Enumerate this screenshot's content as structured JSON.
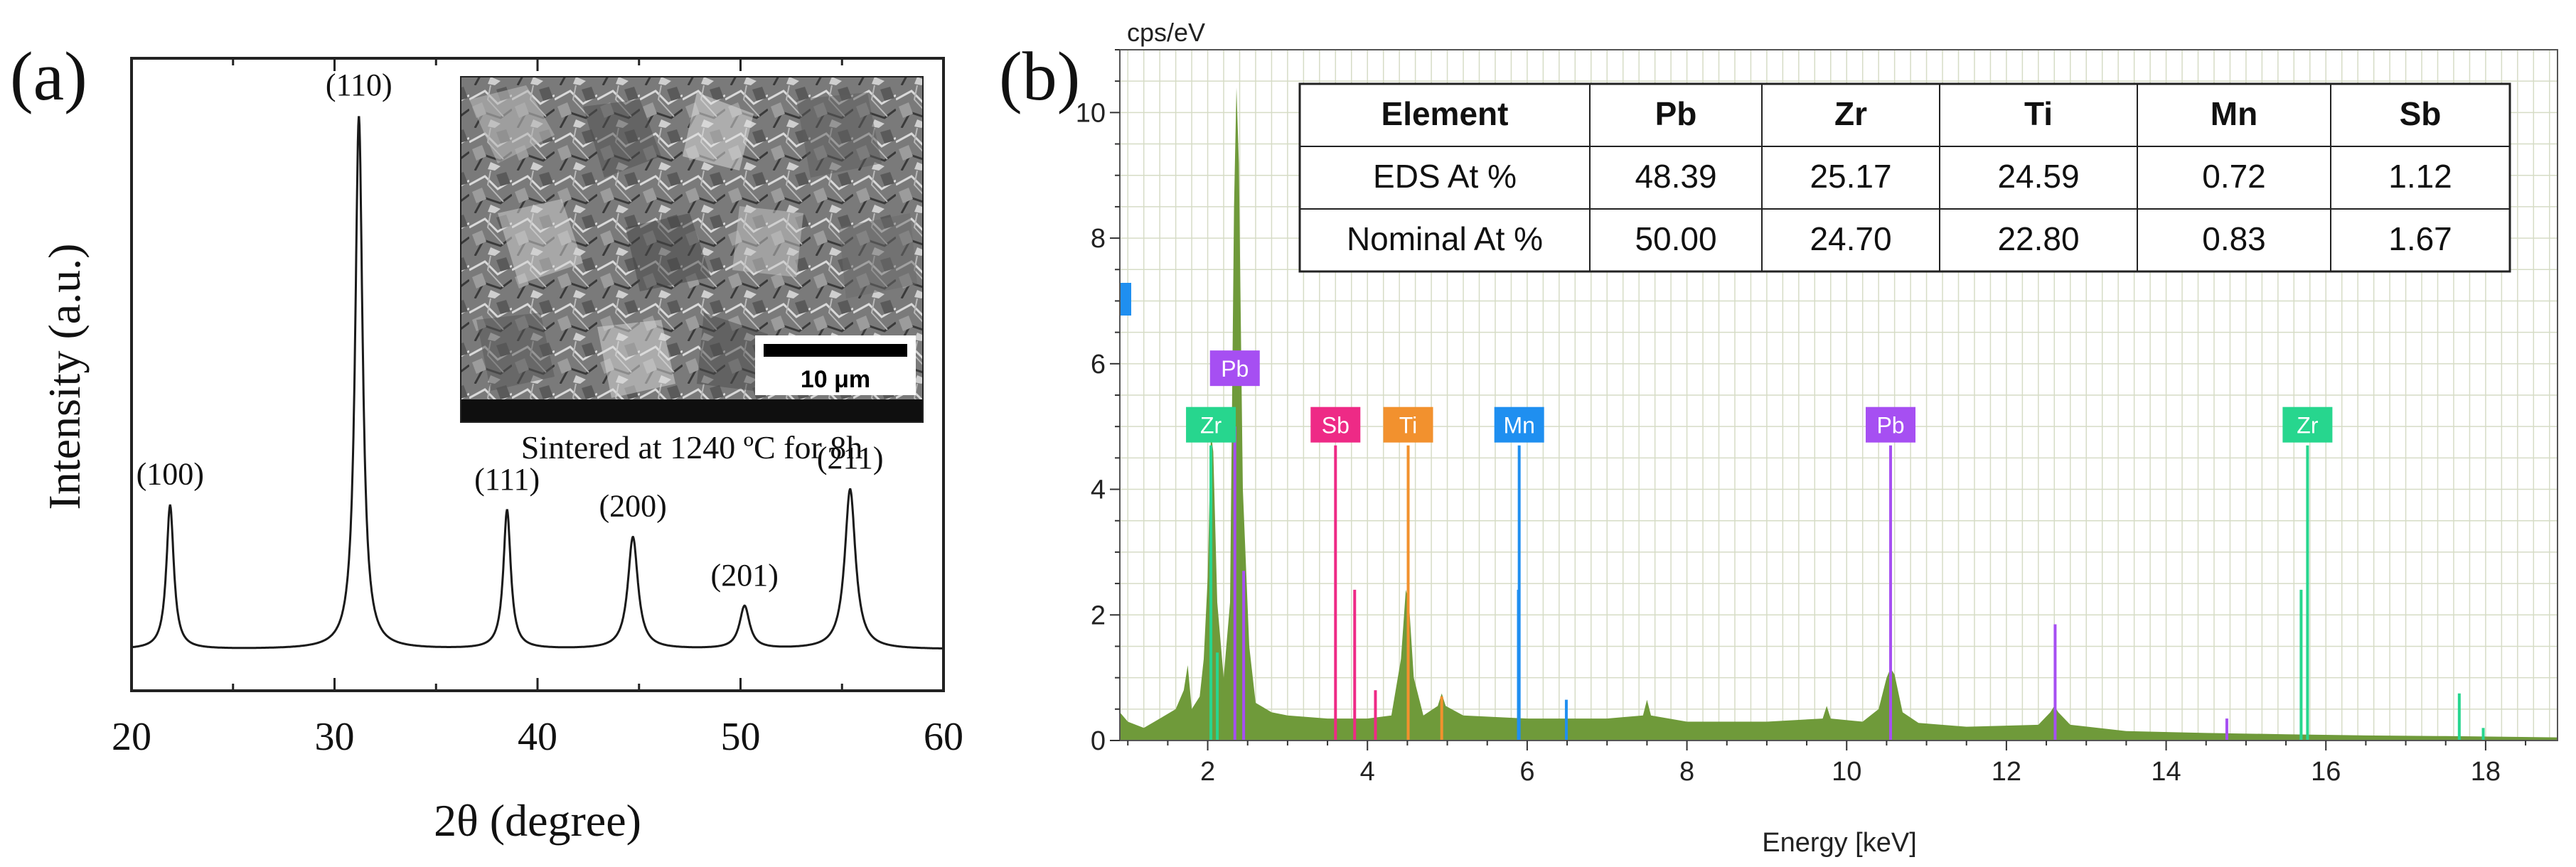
{
  "chart_data": [
    {
      "type": "line",
      "panel_label": "(a)",
      "xlabel": "2θ (degree)",
      "ylabel": "Intensity (a.u.)",
      "xlim": [
        20,
        60
      ],
      "xticks": [
        20,
        30,
        40,
        50,
        60
      ],
      "y_ticks_shown": false,
      "grid": false,
      "baseline": 0.035,
      "peaks": [
        {
          "label": "(100)",
          "x": 21.9,
          "height": 0.27,
          "width": 0.22
        },
        {
          "label": "(110)",
          "x": 31.2,
          "height": 1.0,
          "width": 0.22
        },
        {
          "label": "(111)",
          "x": 38.5,
          "height": 0.26,
          "width": 0.22
        },
        {
          "label": "(200)",
          "x": 44.7,
          "height": 0.21,
          "width": 0.3
        },
        {
          "label": "(201)",
          "x": 50.2,
          "height": 0.08,
          "width": 0.3
        },
        {
          "label": "(211)",
          "x": 55.4,
          "height": 0.3,
          "width": 0.32
        }
      ],
      "inset": {
        "caption": "Sintered at 1240 ºC for 8h",
        "scale_bar_label": "10 μm"
      }
    },
    {
      "type": "area",
      "panel_label": "(b)",
      "ylabel": "cps/eV",
      "xlabel": "Energy [keV]",
      "xlim": [
        0.9,
        18.9
      ],
      "ylim": [
        0,
        11
      ],
      "xticks": [
        2,
        4,
        6,
        8,
        10,
        12,
        14,
        16,
        18
      ],
      "yticks": [
        0,
        2,
        4,
        6,
        8,
        10
      ],
      "grid": true,
      "spectrum_color": "#6f9a3a",
      "spectrum_points": [
        [
          0.9,
          0.45
        ],
        [
          1.0,
          0.3
        ],
        [
          1.2,
          0.2
        ],
        [
          1.4,
          0.35
        ],
        [
          1.6,
          0.5
        ],
        [
          1.7,
          0.8
        ],
        [
          1.75,
          1.2
        ],
        [
          1.8,
          0.5
        ],
        [
          1.9,
          0.7
        ],
        [
          1.95,
          1.3
        ],
        [
          2.0,
          2.6
        ],
        [
          2.04,
          4.9
        ],
        [
          2.07,
          4.6
        ],
        [
          2.12,
          2.2
        ],
        [
          2.2,
          1.0
        ],
        [
          2.28,
          2.2
        ],
        [
          2.33,
          8.5
        ],
        [
          2.36,
          10.4
        ],
        [
          2.39,
          9.2
        ],
        [
          2.44,
          4.0
        ],
        [
          2.52,
          1.5
        ],
        [
          2.6,
          0.6
        ],
        [
          2.8,
          0.45
        ],
        [
          3.0,
          0.4
        ],
        [
          3.5,
          0.35
        ],
        [
          4.0,
          0.35
        ],
        [
          4.3,
          0.4
        ],
        [
          4.42,
          1.3
        ],
        [
          4.48,
          2.4
        ],
        [
          4.52,
          2.2
        ],
        [
          4.58,
          1.0
        ],
        [
          4.7,
          0.4
        ],
        [
          4.88,
          0.55
        ],
        [
          4.93,
          0.75
        ],
        [
          4.98,
          0.55
        ],
        [
          5.2,
          0.4
        ],
        [
          6.0,
          0.35
        ],
        [
          7.0,
          0.35
        ],
        [
          7.45,
          0.4
        ],
        [
          7.5,
          0.65
        ],
        [
          7.55,
          0.4
        ],
        [
          8.0,
          0.3
        ],
        [
          9.0,
          0.3
        ],
        [
          9.7,
          0.35
        ],
        [
          9.75,
          0.55
        ],
        [
          9.8,
          0.35
        ],
        [
          10.2,
          0.3
        ],
        [
          10.4,
          0.5
        ],
        [
          10.5,
          1.0
        ],
        [
          10.55,
          1.15
        ],
        [
          10.6,
          1.05
        ],
        [
          10.7,
          0.45
        ],
        [
          10.9,
          0.28
        ],
        [
          11.5,
          0.22
        ],
        [
          12.4,
          0.25
        ],
        [
          12.55,
          0.45
        ],
        [
          12.6,
          0.55
        ],
        [
          12.65,
          0.45
        ],
        [
          12.8,
          0.25
        ],
        [
          13.5,
          0.15
        ],
        [
          14.5,
          0.12
        ],
        [
          15.5,
          0.1
        ],
        [
          16.5,
          0.08
        ],
        [
          17.5,
          0.07
        ],
        [
          18.9,
          0.05
        ]
      ],
      "element_markers": [
        {
          "element": "Zr",
          "energy": 2.04,
          "height": 4.7,
          "color": "#27d68e"
        },
        {
          "element": "Pb",
          "energy": 2.34,
          "height": 5.6,
          "color": "#a64ff2"
        },
        {
          "element": "Sb",
          "energy": 3.6,
          "height": 4.7,
          "color": "#ee2a86"
        },
        {
          "element": "Ti",
          "energy": 4.51,
          "height": 4.7,
          "color": "#f2912e"
        },
        {
          "element": "Mn",
          "energy": 5.9,
          "height": 4.7,
          "color": "#1f8ff0"
        },
        {
          "element": "Pb",
          "energy": 10.55,
          "height": 4.7,
          "color": "#a64ff2"
        },
        {
          "element": "Zr",
          "energy": 15.77,
          "height": 4.7,
          "color": "#27d68e"
        }
      ],
      "lines": [
        {
          "energy": 2.04,
          "height": 4.7,
          "color": "#27d68e"
        },
        {
          "energy": 2.12,
          "height": 1.4,
          "color": "#27d68e"
        },
        {
          "energy": 2.34,
          "height": 5.0,
          "color": "#a64ff2"
        },
        {
          "energy": 2.45,
          "height": 2.7,
          "color": "#a64ff2"
        },
        {
          "energy": 3.6,
          "height": 4.7,
          "color": "#ee2a86"
        },
        {
          "energy": 3.84,
          "height": 2.4,
          "color": "#ee2a86"
        },
        {
          "energy": 4.1,
          "height": 0.8,
          "color": "#ee2a86"
        },
        {
          "energy": 4.51,
          "height": 4.7,
          "color": "#f2912e"
        },
        {
          "energy": 4.93,
          "height": 0.7,
          "color": "#f2912e"
        },
        {
          "energy": 5.9,
          "height": 4.7,
          "color": "#1f8ff0"
        },
        {
          "energy": 5.89,
          "height": 2.4,
          "color": "#1f8ff0"
        },
        {
          "energy": 6.49,
          "height": 0.65,
          "color": "#1f8ff0"
        },
        {
          "energy": 10.55,
          "height": 4.7,
          "color": "#a64ff2"
        },
        {
          "energy": 12.61,
          "height": 1.85,
          "color": "#a64ff2"
        },
        {
          "energy": 14.76,
          "height": 0.35,
          "color": "#a64ff2"
        },
        {
          "energy": 15.69,
          "height": 2.4,
          "color": "#27d68e"
        },
        {
          "energy": 15.77,
          "height": 4.7,
          "color": "#27d68e"
        },
        {
          "energy": 17.67,
          "height": 0.75,
          "color": "#27d68e"
        },
        {
          "energy": 17.97,
          "height": 0.2,
          "color": "#27d68e"
        }
      ],
      "edge_label_color": "#1f8ff0",
      "table": {
        "headers": [
          "Element",
          "Pb",
          "Zr",
          "Ti",
          "Mn",
          "Sb"
        ],
        "rows": [
          [
            "EDS At %",
            "48.39",
            "25.17",
            "24.59",
            "0.72",
            "1.12"
          ],
          [
            "Nominal At %",
            "50.00",
            "24.70",
            "22.80",
            "0.83",
            "1.67"
          ]
        ]
      }
    }
  ]
}
